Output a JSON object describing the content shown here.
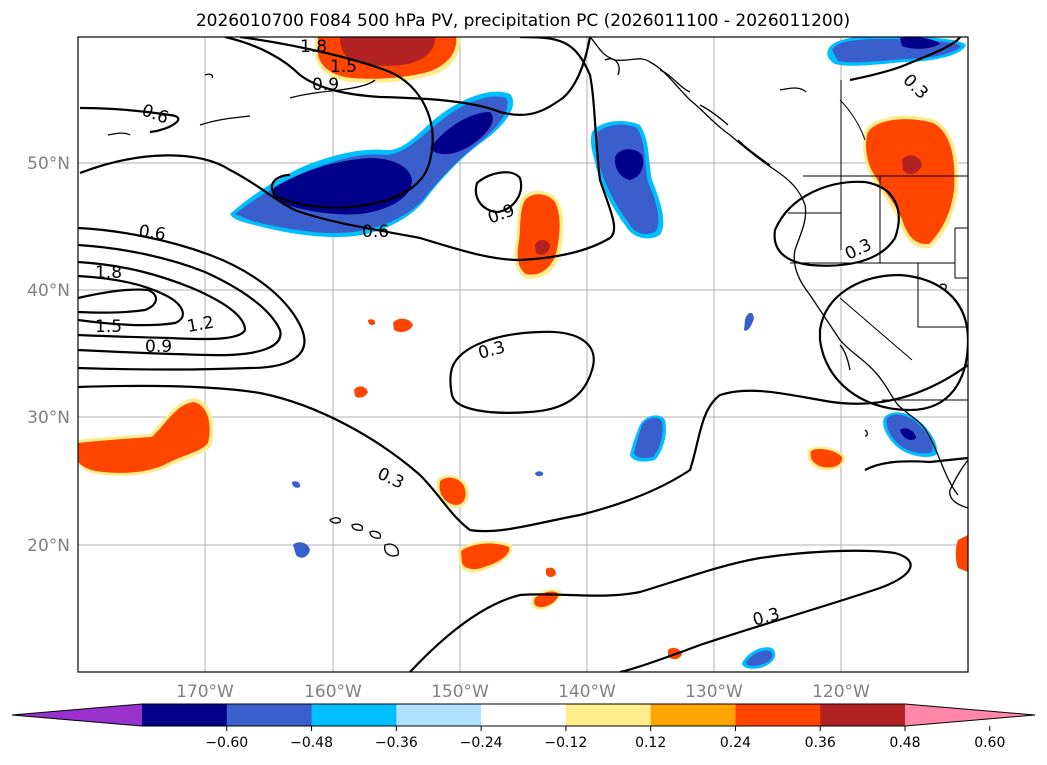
{
  "title": "2026010700 F084 500 hPa PV, precipitation PC (2026011100 - 2026011200)",
  "latitude_labels": [
    "50°N",
    "40°N",
    "30°N",
    "20°N"
  ],
  "longitude_labels": [
    "170°W",
    "160°W",
    "150°W",
    "140°W",
    "130°W",
    "120°W"
  ],
  "pv_contour_labels": [
    "1.8",
    "1.5",
    "0.9",
    "0.6",
    "1.8",
    "1.5",
    "1.2",
    "0.9",
    "0.6",
    "0.6",
    "0.9",
    "0.3",
    "0.3",
    "0.3",
    "0.3",
    "0.3"
  ],
  "colorbar": {
    "tick_labels": [
      "−0.60",
      "−0.48",
      "−0.36",
      "−0.24",
      "−0.12",
      "0.12",
      "0.24",
      "0.36",
      "0.48",
      "0.60"
    ],
    "colors": [
      "#9932cc",
      "#00008b",
      "#3a5fcd",
      "#00bfff",
      "#b0e0ff",
      "#ffffff",
      "#ffec8b",
      "#ffa500",
      "#ff4500",
      "#b22222",
      "#ff88aa"
    ],
    "extend": "both"
  },
  "map": {
    "region": "North Pacific / western North America",
    "lat_range": [
      10,
      60
    ],
    "lon_range": [
      -180,
      -110
    ],
    "gridlines": true,
    "fields": [
      "500 hPa PV (black contours)",
      "precipitation PC (filled)"
    ]
  }
}
